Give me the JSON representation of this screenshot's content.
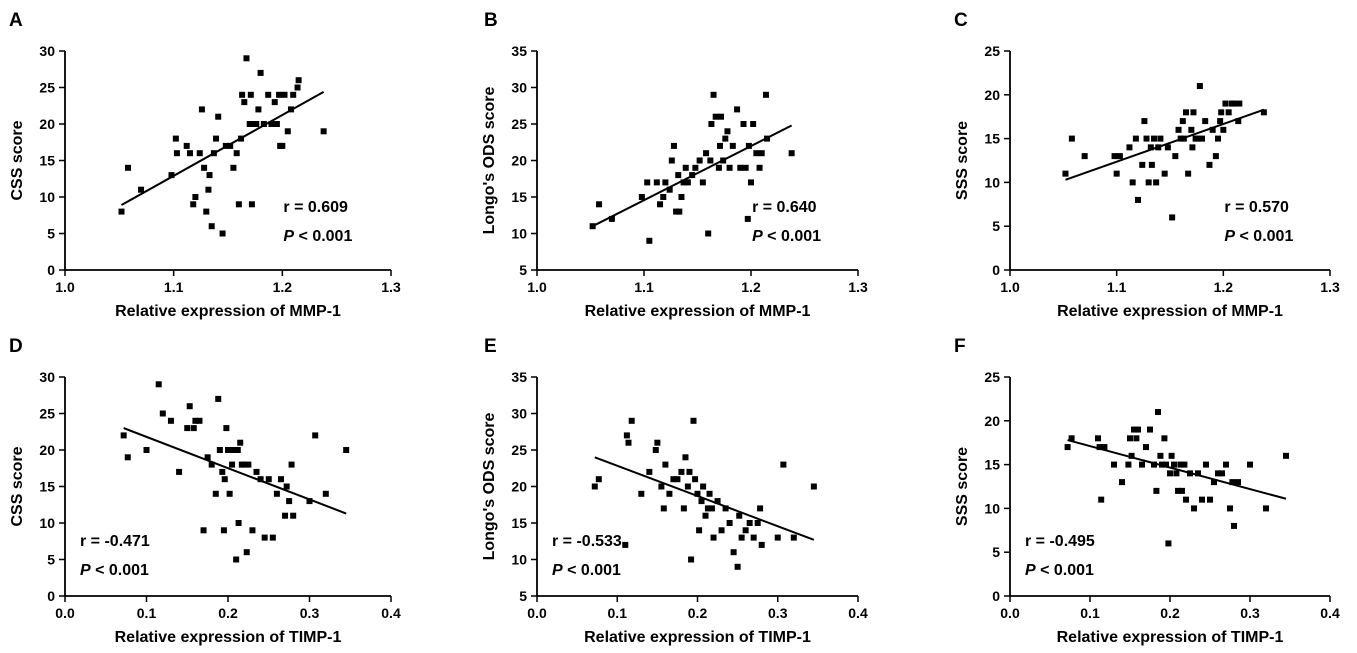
{
  "chart_data": [
    {
      "panel": "A",
      "type": "scatter",
      "xlabel": "Relative expression of MMP-1",
      "ylabel": "CSS score",
      "xlim": [
        1.0,
        1.3
      ],
      "ylim": [
        0,
        30
      ],
      "xticks": [
        "1.0",
        "1.1",
        "1.2",
        "1.3"
      ],
      "yticks": [
        "0",
        "5",
        "10",
        "15",
        "20",
        "25",
        "30"
      ],
      "r_text": "r = 0.609",
      "p_label": "P",
      "p_text": " < 0.001",
      "fit": [
        [
          1.052,
          8.9
        ],
        [
          1.238,
          24.4
        ]
      ],
      "points": [
        [
          1.052,
          8
        ],
        [
          1.058,
          14
        ],
        [
          1.07,
          11
        ],
        [
          1.098,
          13
        ],
        [
          1.103,
          16
        ],
        [
          1.102,
          18
        ],
        [
          1.112,
          17
        ],
        [
          1.115,
          16
        ],
        [
          1.12,
          10
        ],
        [
          1.118,
          9
        ],
        [
          1.124,
          16
        ],
        [
          1.126,
          22
        ],
        [
          1.128,
          14
        ],
        [
          1.13,
          8
        ],
        [
          1.132,
          11
        ],
        [
          1.133,
          13
        ],
        [
          1.135,
          6
        ],
        [
          1.137,
          16
        ],
        [
          1.139,
          18
        ],
        [
          1.141,
          21
        ],
        [
          1.145,
          5
        ],
        [
          1.148,
          17
        ],
        [
          1.152,
          17
        ],
        [
          1.155,
          14
        ],
        [
          1.158,
          16
        ],
        [
          1.16,
          9
        ],
        [
          1.162,
          18
        ],
        [
          1.163,
          24
        ],
        [
          1.165,
          23
        ],
        [
          1.167,
          29
        ],
        [
          1.17,
          20
        ],
        [
          1.171,
          24
        ],
        [
          1.172,
          9
        ],
        [
          1.174,
          20
        ],
        [
          1.176,
          20
        ],
        [
          1.178,
          22
        ],
        [
          1.18,
          27
        ],
        [
          1.183,
          20
        ],
        [
          1.187,
          24
        ],
        [
          1.19,
          20
        ],
        [
          1.193,
          23
        ],
        [
          1.195,
          20
        ],
        [
          1.197,
          24
        ],
        [
          1.198,
          17
        ],
        [
          1.2,
          17
        ],
        [
          1.202,
          24
        ],
        [
          1.205,
          19
        ],
        [
          1.208,
          22
        ],
        [
          1.21,
          24
        ],
        [
          1.214,
          25
        ],
        [
          1.215,
          26
        ],
        [
          1.238,
          19
        ]
      ]
    },
    {
      "panel": "B",
      "type": "scatter",
      "xlabel": "Relative expression of MMP-1",
      "ylabel": "Longo's ODS score",
      "xlim": [
        1.0,
        1.3
      ],
      "ylim": [
        5,
        35
      ],
      "xticks": [
        "1.0",
        "1.1",
        "1.2",
        "1.3"
      ],
      "yticks": [
        "5",
        "10",
        "15",
        "20",
        "25",
        "30",
        "35"
      ],
      "r_text": "r = 0.640",
      "p_label": "P",
      "p_text": " < 0.001",
      "fit": [
        [
          1.052,
          11.0
        ],
        [
          1.238,
          24.8
        ]
      ],
      "points": [
        [
          1.052,
          11
        ],
        [
          1.058,
          14
        ],
        [
          1.07,
          12
        ],
        [
          1.098,
          15
        ],
        [
          1.103,
          17
        ],
        [
          1.105,
          9
        ],
        [
          1.112,
          17
        ],
        [
          1.115,
          14
        ],
        [
          1.12,
          17
        ],
        [
          1.118,
          15
        ],
        [
          1.124,
          16
        ],
        [
          1.126,
          20
        ],
        [
          1.128,
          22
        ],
        [
          1.13,
          13
        ],
        [
          1.132,
          18
        ],
        [
          1.133,
          13
        ],
        [
          1.135,
          15
        ],
        [
          1.137,
          17
        ],
        [
          1.139,
          19
        ],
        [
          1.141,
          17
        ],
        [
          1.145,
          18
        ],
        [
          1.148,
          19
        ],
        [
          1.152,
          20
        ],
        [
          1.155,
          17
        ],
        [
          1.158,
          21
        ],
        [
          1.16,
          10
        ],
        [
          1.162,
          20
        ],
        [
          1.163,
          25
        ],
        [
          1.165,
          29
        ],
        [
          1.167,
          26
        ],
        [
          1.17,
          19
        ],
        [
          1.171,
          22
        ],
        [
          1.172,
          26
        ],
        [
          1.174,
          20
        ],
        [
          1.176,
          23
        ],
        [
          1.178,
          24
        ],
        [
          1.18,
          19
        ],
        [
          1.183,
          22
        ],
        [
          1.187,
          27
        ],
        [
          1.19,
          19
        ],
        [
          1.193,
          25
        ],
        [
          1.195,
          19
        ],
        [
          1.197,
          12
        ],
        [
          1.198,
          22
        ],
        [
          1.2,
          17
        ],
        [
          1.202,
          25
        ],
        [
          1.205,
          21
        ],
        [
          1.208,
          19
        ],
        [
          1.21,
          21
        ],
        [
          1.214,
          29
        ],
        [
          1.215,
          23
        ],
        [
          1.238,
          21
        ]
      ]
    },
    {
      "panel": "C",
      "type": "scatter",
      "xlabel": "Relative expression of MMP-1",
      "ylabel": "SSS score",
      "xlim": [
        1.0,
        1.3
      ],
      "ylim": [
        0,
        25
      ],
      "xticks": [
        "1.0",
        "1.1",
        "1.2",
        "1.3"
      ],
      "yticks": [
        "0",
        "5",
        "10",
        "15",
        "20",
        "25"
      ],
      "r_text": "r = 0.570",
      "p_label": "P",
      "p_text": " < 0.001",
      "fit": [
        [
          1.052,
          10.3
        ],
        [
          1.238,
          18.3
        ]
      ],
      "points": [
        [
          1.052,
          11
        ],
        [
          1.058,
          15
        ],
        [
          1.07,
          13
        ],
        [
          1.098,
          13
        ],
        [
          1.103,
          13
        ],
        [
          1.1,
          11
        ],
        [
          1.112,
          14
        ],
        [
          1.115,
          10
        ],
        [
          1.12,
          8
        ],
        [
          1.118,
          15
        ],
        [
          1.124,
          12
        ],
        [
          1.126,
          17
        ],
        [
          1.128,
          15
        ],
        [
          1.13,
          10
        ],
        [
          1.132,
          14
        ],
        [
          1.133,
          12
        ],
        [
          1.135,
          15
        ],
        [
          1.137,
          10
        ],
        [
          1.139,
          14
        ],
        [
          1.141,
          15
        ],
        [
          1.145,
          11
        ],
        [
          1.148,
          14
        ],
        [
          1.152,
          6
        ],
        [
          1.155,
          13
        ],
        [
          1.158,
          16
        ],
        [
          1.16,
          15
        ],
        [
          1.162,
          17
        ],
        [
          1.163,
          15
        ],
        [
          1.165,
          18
        ],
        [
          1.167,
          11
        ],
        [
          1.17,
          16
        ],
        [
          1.171,
          14
        ],
        [
          1.172,
          18
        ],
        [
          1.174,
          15
        ],
        [
          1.176,
          15
        ],
        [
          1.178,
          21
        ],
        [
          1.18,
          15
        ],
        [
          1.183,
          17
        ],
        [
          1.187,
          12
        ],
        [
          1.19,
          16
        ],
        [
          1.193,
          13
        ],
        [
          1.195,
          15
        ],
        [
          1.197,
          17
        ],
        [
          1.198,
          18
        ],
        [
          1.2,
          16
        ],
        [
          1.202,
          19
        ],
        [
          1.205,
          18
        ],
        [
          1.208,
          19
        ],
        [
          1.21,
          19
        ],
        [
          1.214,
          17
        ],
        [
          1.215,
          19
        ],
        [
          1.238,
          18
        ]
      ]
    },
    {
      "panel": "D",
      "type": "scatter",
      "xlabel": "Relative expression of TIMP-1",
      "ylabel": "CSS score",
      "xlim": [
        0.0,
        0.4
      ],
      "ylim": [
        0,
        30
      ],
      "xticks": [
        "0.0",
        "0.1",
        "0.2",
        "0.3",
        "0.4"
      ],
      "yticks": [
        "0",
        "5",
        "10",
        "15",
        "20",
        "25",
        "30"
      ],
      "r_text": "r = -0.471",
      "p_label": "P",
      "p_text": " < 0.001",
      "fit": [
        [
          0.072,
          23.0
        ],
        [
          0.345,
          11.3
        ]
      ],
      "points": [
        [
          0.072,
          22
        ],
        [
          0.077,
          19
        ],
        [
          0.1,
          20
        ],
        [
          0.115,
          29
        ],
        [
          0.12,
          25
        ],
        [
          0.13,
          24
        ],
        [
          0.14,
          17
        ],
        [
          0.15,
          23
        ],
        [
          0.153,
          26
        ],
        [
          0.158,
          23
        ],
        [
          0.16,
          24
        ],
        [
          0.165,
          24
        ],
        [
          0.17,
          9
        ],
        [
          0.175,
          19
        ],
        [
          0.18,
          18
        ],
        [
          0.185,
          14
        ],
        [
          0.188,
          27
        ],
        [
          0.19,
          20
        ],
        [
          0.193,
          17
        ],
        [
          0.195,
          9
        ],
        [
          0.196,
          16
        ],
        [
          0.198,
          23
        ],
        [
          0.2,
          20
        ],
        [
          0.202,
          14
        ],
        [
          0.205,
          18
        ],
        [
          0.207,
          20
        ],
        [
          0.21,
          5
        ],
        [
          0.212,
          20
        ],
        [
          0.213,
          10
        ],
        [
          0.215,
          21
        ],
        [
          0.217,
          18
        ],
        [
          0.22,
          18
        ],
        [
          0.223,
          6
        ],
        [
          0.225,
          18
        ],
        [
          0.23,
          9
        ],
        [
          0.235,
          17
        ],
        [
          0.24,
          16
        ],
        [
          0.245,
          8
        ],
        [
          0.25,
          16
        ],
        [
          0.255,
          8
        ],
        [
          0.26,
          14
        ],
        [
          0.265,
          16
        ],
        [
          0.27,
          11
        ],
        [
          0.272,
          15
        ],
        [
          0.275,
          13
        ],
        [
          0.278,
          18
        ],
        [
          0.28,
          11
        ],
        [
          0.3,
          13
        ],
        [
          0.307,
          22
        ],
        [
          0.32,
          14
        ],
        [
          0.345,
          20
        ]
      ]
    },
    {
      "panel": "E",
      "type": "scatter",
      "xlabel": "Relative expression of TIMP-1",
      "ylabel": "Longo's ODS score",
      "xlim": [
        0.0,
        0.4
      ],
      "ylim": [
        5,
        35
      ],
      "xticks": [
        "0.0",
        "0.1",
        "0.2",
        "0.3",
        "0.4"
      ],
      "yticks": [
        "5",
        "10",
        "15",
        "20",
        "25",
        "30",
        "35"
      ],
      "r_text": "r = -0.533",
      "p_label": "P",
      "p_text": " < 0.001",
      "fit": [
        [
          0.072,
          24.0
        ],
        [
          0.345,
          12.7
        ]
      ],
      "points": [
        [
          0.072,
          20
        ],
        [
          0.077,
          21
        ],
        [
          0.11,
          12
        ],
        [
          0.112,
          27
        ],
        [
          0.114,
          26
        ],
        [
          0.118,
          29
        ],
        [
          0.13,
          19
        ],
        [
          0.14,
          22
        ],
        [
          0.148,
          25
        ],
        [
          0.15,
          26
        ],
        [
          0.155,
          20
        ],
        [
          0.158,
          17
        ],
        [
          0.16,
          23
        ],
        [
          0.165,
          19
        ],
        [
          0.17,
          21
        ],
        [
          0.175,
          21
        ],
        [
          0.18,
          22
        ],
        [
          0.183,
          17
        ],
        [
          0.185,
          24
        ],
        [
          0.188,
          20
        ],
        [
          0.19,
          22
        ],
        [
          0.192,
          10
        ],
        [
          0.195,
          29
        ],
        [
          0.197,
          21
        ],
        [
          0.2,
          19
        ],
        [
          0.202,
          14
        ],
        [
          0.205,
          18
        ],
        [
          0.207,
          20
        ],
        [
          0.21,
          16
        ],
        [
          0.213,
          17
        ],
        [
          0.215,
          19
        ],
        [
          0.218,
          17
        ],
        [
          0.22,
          13
        ],
        [
          0.225,
          18
        ],
        [
          0.23,
          14
        ],
        [
          0.235,
          17
        ],
        [
          0.24,
          15
        ],
        [
          0.245,
          11
        ],
        [
          0.25,
          9
        ],
        [
          0.252,
          16
        ],
        [
          0.255,
          13
        ],
        [
          0.26,
          14
        ],
        [
          0.265,
          15
        ],
        [
          0.27,
          13
        ],
        [
          0.275,
          15
        ],
        [
          0.278,
          17
        ],
        [
          0.28,
          12
        ],
        [
          0.3,
          13
        ],
        [
          0.307,
          23
        ],
        [
          0.32,
          13
        ],
        [
          0.345,
          20
        ]
      ]
    },
    {
      "panel": "F",
      "type": "scatter",
      "xlabel": "Relative expression of TIMP-1",
      "ylabel": "SSS score",
      "xlim": [
        0.0,
        0.4
      ],
      "ylim": [
        0,
        25
      ],
      "xticks": [
        "0.0",
        "0.1",
        "0.2",
        "0.3",
        "0.4"
      ],
      "yticks": [
        "0",
        "5",
        "10",
        "15",
        "20",
        "25"
      ],
      "r_text": "r = -0.495",
      "p_label": "P",
      "p_text": " < 0.001",
      "fit": [
        [
          0.072,
          17.8
        ],
        [
          0.345,
          11.1
        ]
      ],
      "points": [
        [
          0.072,
          17
        ],
        [
          0.077,
          18
        ],
        [
          0.11,
          18
        ],
        [
          0.112,
          17
        ],
        [
          0.114,
          11
        ],
        [
          0.118,
          17
        ],
        [
          0.13,
          15
        ],
        [
          0.14,
          13
        ],
        [
          0.148,
          15
        ],
        [
          0.15,
          18
        ],
        [
          0.152,
          16
        ],
        [
          0.155,
          19
        ],
        [
          0.158,
          18
        ],
        [
          0.16,
          19
        ],
        [
          0.165,
          15
        ],
        [
          0.17,
          17
        ],
        [
          0.175,
          19
        ],
        [
          0.18,
          15
        ],
        [
          0.183,
          12
        ],
        [
          0.185,
          21
        ],
        [
          0.188,
          16
        ],
        [
          0.19,
          15
        ],
        [
          0.193,
          18
        ],
        [
          0.195,
          15
        ],
        [
          0.198,
          6
        ],
        [
          0.2,
          14
        ],
        [
          0.202,
          16
        ],
        [
          0.205,
          15
        ],
        [
          0.208,
          14
        ],
        [
          0.21,
          12
        ],
        [
          0.213,
          15
        ],
        [
          0.215,
          12
        ],
        [
          0.218,
          15
        ],
        [
          0.22,
          11
        ],
        [
          0.225,
          14
        ],
        [
          0.23,
          10
        ],
        [
          0.235,
          14
        ],
        [
          0.24,
          11
        ],
        [
          0.245,
          15
        ],
        [
          0.25,
          11
        ],
        [
          0.255,
          13
        ],
        [
          0.26,
          14
        ],
        [
          0.265,
          14
        ],
        [
          0.27,
          15
        ],
        [
          0.275,
          10
        ],
        [
          0.278,
          13
        ],
        [
          0.28,
          8
        ],
        [
          0.285,
          13
        ],
        [
          0.3,
          15
        ],
        [
          0.32,
          10
        ],
        [
          0.345,
          16
        ]
      ]
    }
  ]
}
